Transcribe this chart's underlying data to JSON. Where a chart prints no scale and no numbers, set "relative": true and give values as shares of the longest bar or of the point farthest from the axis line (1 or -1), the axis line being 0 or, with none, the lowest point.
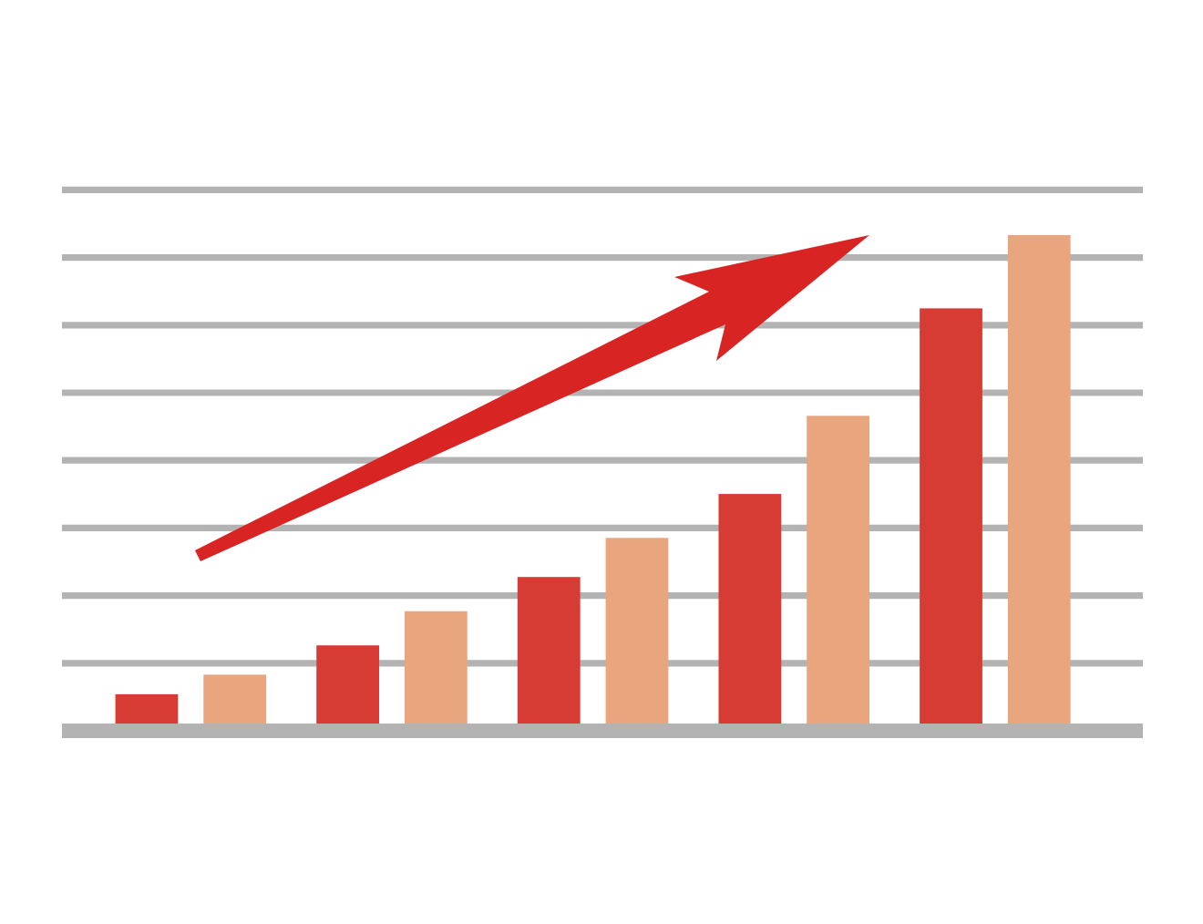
{
  "chart_data": {
    "type": "bar",
    "relative": true,
    "categories": [
      null,
      null,
      null,
      null,
      null
    ],
    "series": [
      {
        "color": "#d73c34",
        "values": [
          0.06,
          0.16,
          0.3,
          0.47,
          0.85
        ]
      },
      {
        "color": "#e9a57e",
        "values": [
          0.1,
          0.23,
          0.38,
          0.63,
          1
        ]
      }
    ],
    "grid": "y"
  }
}
